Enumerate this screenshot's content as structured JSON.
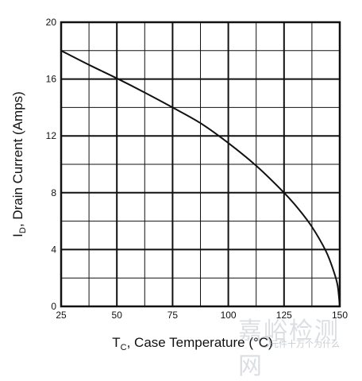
{
  "chart_data": {
    "type": "line",
    "title": "",
    "xlabel_main": "T",
    "xlabel_sub": "C",
    "xlabel_rest": ", Case Temperature (°C)",
    "ylabel_main": "I",
    "ylabel_sub": "D",
    "ylabel_rest": ", Drain Current (Amps)",
    "xlim": [
      25,
      150
    ],
    "ylim": [
      0,
      20
    ],
    "x_ticks": [
      25,
      50,
      75,
      100,
      125,
      150
    ],
    "y_ticks": [
      0,
      4,
      8,
      12,
      16,
      20
    ],
    "grid": true,
    "series": [
      {
        "x": [
          25,
          37.5,
          50,
          62.5,
          75,
          87.5,
          100,
          112.5,
          125,
          131.25,
          137.5,
          143.75,
          147,
          149,
          150
        ],
        "y": [
          18,
          17,
          16.05,
          15.05,
          14,
          12.9,
          11.5,
          9.9,
          8,
          6.9,
          5.6,
          3.9,
          2.6,
          1.5,
          0
        ]
      }
    ]
  },
  "watermark": {
    "main": "嘉峪检测网",
    "small": "元件十万个为什么"
  },
  "colors": {
    "line": "#111111",
    "grid": "#111111",
    "background": "#ffffff"
  }
}
